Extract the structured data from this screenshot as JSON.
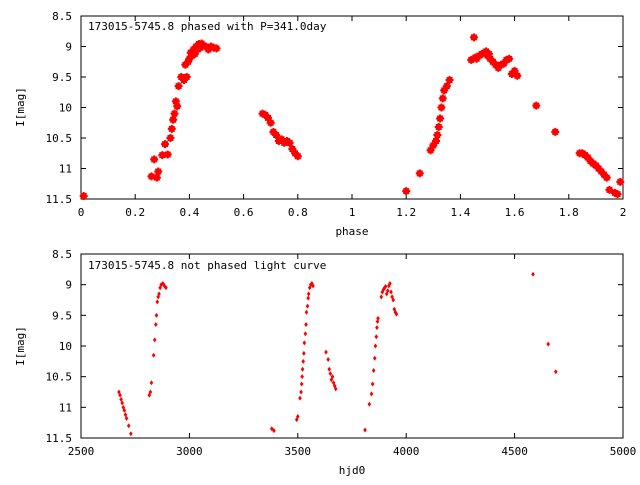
{
  "colors": {
    "points": "#ff0000",
    "axis": "#000000",
    "background": "#ffffff"
  },
  "chart_data": [
    {
      "type": "scatter",
      "title": "173015-5745.8 phased with P=341.0day",
      "xlabel": "phase",
      "ylabel": "I[mag]",
      "xlim": [
        0,
        2
      ],
      "ylim": [
        8.5,
        11.5
      ],
      "y_inverted": true,
      "grid": false,
      "x_ticks": [
        0,
        0.2,
        0.4,
        0.6,
        0.8,
        1,
        1.2,
        1.4,
        1.6,
        1.8,
        2
      ],
      "x_tick_labels": [
        "0",
        "0.2",
        "0.4",
        "0.6",
        "0.8",
        "1",
        "1.2",
        "1.4",
        "1.6",
        "1.8",
        "2"
      ],
      "y_ticks": [
        8.5,
        9,
        9.5,
        10,
        10.5,
        11,
        11.5
      ],
      "y_tick_labels": [
        "8.5",
        "9",
        "9.5",
        "10",
        "10.5",
        "11",
        "11.5"
      ],
      "marker": "star",
      "points": [
        [
          0.01,
          11.45
        ],
        [
          0.26,
          11.13
        ],
        [
          0.27,
          10.85
        ],
        [
          0.28,
          11.15
        ],
        [
          0.285,
          11.05
        ],
        [
          0.3,
          10.78
        ],
        [
          0.31,
          10.6
        ],
        [
          0.32,
          10.77
        ],
        [
          0.33,
          10.5
        ],
        [
          0.335,
          10.35
        ],
        [
          0.34,
          10.2
        ],
        [
          0.345,
          10.1
        ],
        [
          0.35,
          9.9
        ],
        [
          0.355,
          9.98
        ],
        [
          0.36,
          9.65
        ],
        [
          0.37,
          9.5
        ],
        [
          0.38,
          9.55
        ],
        [
          0.385,
          9.3
        ],
        [
          0.39,
          9.5
        ],
        [
          0.395,
          9.25
        ],
        [
          0.4,
          9.2
        ],
        [
          0.405,
          9.1
        ],
        [
          0.41,
          9.15
        ],
        [
          0.415,
          9.05
        ],
        [
          0.42,
          9.12
        ],
        [
          0.425,
          9.0
        ],
        [
          0.43,
          9.05
        ],
        [
          0.435,
          8.96
        ],
        [
          0.44,
          9.02
        ],
        [
          0.445,
          8.95
        ],
        [
          0.45,
          8.98
        ],
        [
          0.46,
          9.0
        ],
        [
          0.47,
          9.05
        ],
        [
          0.48,
          9.0
        ],
        [
          0.49,
          9.02
        ],
        [
          0.5,
          9.03
        ],
        [
          0.67,
          10.1
        ],
        [
          0.68,
          10.12
        ],
        [
          0.69,
          10.17
        ],
        [
          0.7,
          10.25
        ],
        [
          0.71,
          10.4
        ],
        [
          0.72,
          10.45
        ],
        [
          0.73,
          10.55
        ],
        [
          0.74,
          10.52
        ],
        [
          0.75,
          10.58
        ],
        [
          0.76,
          10.55
        ],
        [
          0.77,
          10.58
        ],
        [
          0.78,
          10.68
        ],
        [
          0.79,
          10.75
        ],
        [
          0.8,
          10.8
        ],
        [
          1.2,
          11.37
        ],
        [
          1.25,
          11.08
        ],
        [
          1.29,
          10.7
        ],
        [
          1.3,
          10.62
        ],
        [
          1.31,
          10.55
        ],
        [
          1.315,
          10.45
        ],
        [
          1.32,
          10.32
        ],
        [
          1.325,
          10.18
        ],
        [
          1.33,
          10.0
        ],
        [
          1.335,
          9.85
        ],
        [
          1.34,
          9.72
        ],
        [
          1.35,
          9.65
        ],
        [
          1.36,
          9.55
        ],
        [
          1.44,
          9.22
        ],
        [
          1.45,
          8.85
        ],
        [
          1.455,
          9.18
        ],
        [
          1.46,
          9.2
        ],
        [
          1.47,
          9.15
        ],
        [
          1.48,
          9.12
        ],
        [
          1.49,
          9.1
        ],
        [
          1.495,
          9.08
        ],
        [
          1.5,
          9.15
        ],
        [
          1.505,
          9.12
        ],
        [
          1.51,
          9.2
        ],
        [
          1.52,
          9.25
        ],
        [
          1.53,
          9.3
        ],
        [
          1.54,
          9.35
        ],
        [
          1.55,
          9.3
        ],
        [
          1.56,
          9.28
        ],
        [
          1.57,
          9.22
        ],
        [
          1.58,
          9.2
        ],
        [
          1.59,
          9.45
        ],
        [
          1.6,
          9.4
        ],
        [
          1.61,
          9.48
        ],
        [
          1.68,
          9.97
        ],
        [
          1.75,
          10.4
        ],
        [
          1.84,
          10.75
        ],
        [
          1.85,
          10.75
        ],
        [
          1.86,
          10.78
        ],
        [
          1.87,
          10.82
        ],
        [
          1.88,
          10.88
        ],
        [
          1.89,
          10.92
        ],
        [
          1.9,
          10.95
        ],
        [
          1.91,
          11.0
        ],
        [
          1.92,
          11.05
        ],
        [
          1.93,
          11.1
        ],
        [
          1.94,
          11.15
        ],
        [
          1.95,
          11.35
        ],
        [
          1.97,
          11.4
        ],
        [
          1.98,
          11.42
        ],
        [
          1.99,
          11.22
        ]
      ]
    },
    {
      "type": "scatter",
      "title": "173015-5745.8 not phased light curve",
      "xlabel": "hjd0",
      "ylabel": "I[mag]",
      "xlim": [
        2500,
        5000
      ],
      "ylim": [
        8.5,
        11.5
      ],
      "y_inverted": true,
      "grid": false,
      "x_ticks": [
        2500,
        3000,
        3500,
        4000,
        4500,
        5000
      ],
      "x_tick_labels": [
        "2500",
        "3000",
        "3500",
        "4000",
        "4500",
        "5000"
      ],
      "y_ticks": [
        8.5,
        9,
        9.5,
        10,
        10.5,
        11,
        11.5
      ],
      "y_tick_labels": [
        "8.5",
        "9",
        "9.5",
        "10",
        "10.5",
        "11",
        "11.5"
      ],
      "marker": "dot",
      "points": [
        [
          2675,
          10.75
        ],
        [
          2680,
          10.8
        ],
        [
          2685,
          10.87
        ],
        [
          2690,
          10.93
        ],
        [
          2695,
          11.0
        ],
        [
          2700,
          11.05
        ],
        [
          2705,
          11.12
        ],
        [
          2710,
          11.18
        ],
        [
          2720,
          11.3
        ],
        [
          2730,
          11.43
        ],
        [
          2815,
          10.8
        ],
        [
          2820,
          10.75
        ],
        [
          2825,
          10.6
        ],
        [
          2835,
          10.15
        ],
        [
          2840,
          9.9
        ],
        [
          2845,
          9.65
        ],
        [
          2848,
          9.5
        ],
        [
          2852,
          9.28
        ],
        [
          2856,
          9.2
        ],
        [
          2860,
          9.15
        ],
        [
          2865,
          9.05
        ],
        [
          2870,
          9.0
        ],
        [
          2878,
          8.98
        ],
        [
          2885,
          9.02
        ],
        [
          2892,
          9.05
        ],
        [
          3380,
          11.35
        ],
        [
          3390,
          11.38
        ],
        [
          3495,
          11.2
        ],
        [
          3500,
          11.15
        ],
        [
          3510,
          10.85
        ],
        [
          3515,
          10.75
        ],
        [
          3518,
          10.62
        ],
        [
          3520,
          10.5
        ],
        [
          3522,
          10.38
        ],
        [
          3525,
          10.25
        ],
        [
          3528,
          10.12
        ],
        [
          3530,
          9.95
        ],
        [
          3535,
          9.8
        ],
        [
          3538,
          9.65
        ],
        [
          3540,
          9.45
        ],
        [
          3545,
          9.35
        ],
        [
          3548,
          9.22
        ],
        [
          3550,
          9.15
        ],
        [
          3555,
          9.05
        ],
        [
          3560,
          9.0
        ],
        [
          3565,
          8.98
        ],
        [
          3570,
          9.02
        ],
        [
          3630,
          10.1
        ],
        [
          3640,
          10.22
        ],
        [
          3645,
          10.38
        ],
        [
          3650,
          10.45
        ],
        [
          3655,
          10.55
        ],
        [
          3660,
          10.5
        ],
        [
          3665,
          10.6
        ],
        [
          3670,
          10.65
        ],
        [
          3675,
          10.7
        ],
        [
          3810,
          11.37
        ],
        [
          3830,
          10.95
        ],
        [
          3840,
          10.78
        ],
        [
          3845,
          10.62
        ],
        [
          3850,
          10.4
        ],
        [
          3855,
          10.2
        ],
        [
          3858,
          10.0
        ],
        [
          3862,
          9.85
        ],
        [
          3865,
          9.7
        ],
        [
          3868,
          9.6
        ],
        [
          3870,
          9.55
        ],
        [
          3885,
          9.2
        ],
        [
          3890,
          9.12
        ],
        [
          3895,
          9.08
        ],
        [
          3900,
          9.05
        ],
        [
          3905,
          9.03
        ],
        [
          3910,
          9.15
        ],
        [
          3915,
          9.1
        ],
        [
          3920,
          9.02
        ],
        [
          3925,
          8.98
        ],
        [
          3930,
          9.12
        ],
        [
          3935,
          9.2
        ],
        [
          3940,
          9.25
        ],
        [
          3945,
          9.4
        ],
        [
          3950,
          9.45
        ],
        [
          3955,
          9.48
        ],
        [
          4585,
          8.83
        ],
        [
          4655,
          9.97
        ],
        [
          4690,
          10.42
        ]
      ]
    }
  ]
}
